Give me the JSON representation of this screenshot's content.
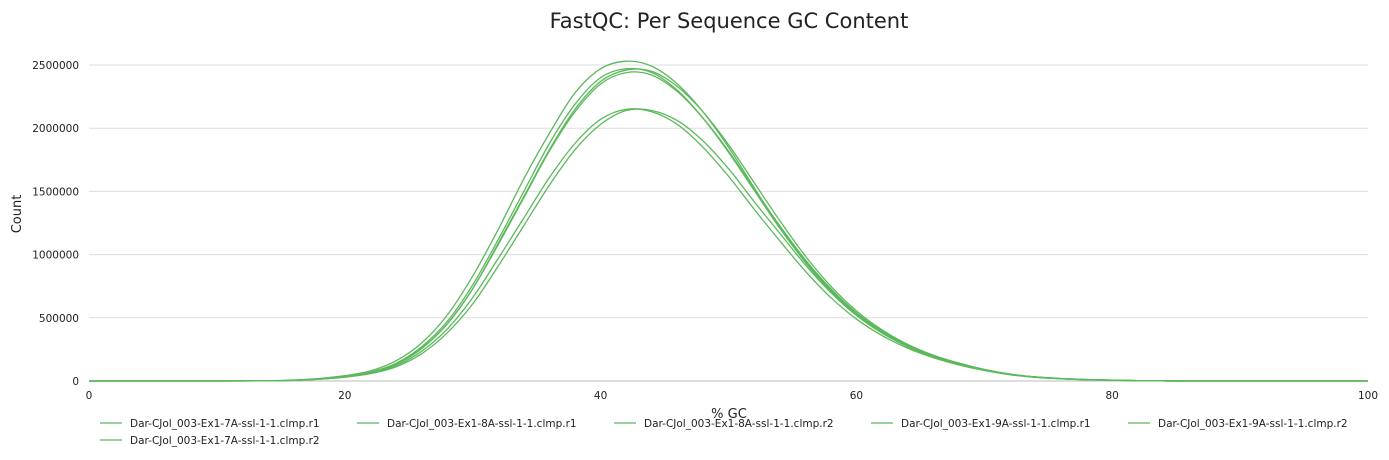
{
  "chart_data": {
    "type": "line",
    "title": "FastQC: Per Sequence GC Content",
    "xlabel": "% GC",
    "ylabel": "Count",
    "xlim": [
      0,
      100
    ],
    "ylim": [
      0,
      2500000
    ],
    "xticks": [
      0,
      20,
      40,
      60,
      80,
      100
    ],
    "yticks": [
      0,
      500000,
      1000000,
      1500000,
      2000000,
      2500000
    ],
    "grid": "horizontal",
    "legend_position": "bottom",
    "line_color": "#5cb85c",
    "x": [
      0,
      10,
      14,
      16,
      18,
      20,
      22,
      24,
      26,
      28,
      30,
      32,
      34,
      36,
      38,
      40,
      42,
      44,
      46,
      48,
      50,
      52,
      54,
      56,
      58,
      60,
      62,
      64,
      66,
      68,
      70,
      72,
      74,
      76,
      78,
      80,
      82,
      84,
      86,
      100
    ],
    "series": [
      {
        "name": "Dar-CJol_003-Ex1-7A-ssl-1-1.clmp.r1",
        "values": [
          0,
          0,
          2000,
          8000,
          20000,
          42000,
          80000,
          160000,
          300000,
          520000,
          830000,
          1200000,
          1600000,
          1960000,
          2280000,
          2470000,
          2530000,
          2490000,
          2350000,
          2130000,
          1850000,
          1530000,
          1220000,
          950000,
          720000,
          530000,
          390000,
          280000,
          200000,
          140000,
          90000,
          55000,
          32000,
          20000,
          12000,
          7000,
          3000,
          1000,
          0,
          0
        ]
      },
      {
        "name": "Dar-CJol_003-Ex1-8A-ssl-1-1.clmp.r1",
        "values": [
          0,
          0,
          1500,
          6000,
          17000,
          36000,
          70000,
          140000,
          270000,
          470000,
          760000,
          1120000,
          1500000,
          1880000,
          2190000,
          2400000,
          2470000,
          2440000,
          2300000,
          2080000,
          1810000,
          1510000,
          1210000,
          940000,
          710000,
          520000,
          380000,
          275000,
          195000,
          135000,
          88000,
          53000,
          31000,
          19000,
          11000,
          6500,
          2800,
          900,
          0,
          0
        ]
      },
      {
        "name": "Dar-CJol_003-Ex1-8A-ssl-1-1.clmp.r2",
        "values": [
          0,
          0,
          1500,
          6000,
          16000,
          34000,
          66000,
          132000,
          255000,
          450000,
          730000,
          1080000,
          1450000,
          1820000,
          2130000,
          2350000,
          2440000,
          2420000,
          2290000,
          2080000,
          1820000,
          1520000,
          1230000,
          960000,
          730000,
          540000,
          395000,
          285000,
          200000,
          140000,
          90000,
          54000,
          32000,
          19000,
          11000,
          6500,
          2800,
          900,
          0,
          0
        ]
      },
      {
        "name": "Dar-CJol_003-Ex1-9A-ssl-1-1.clmp.r1",
        "values": [
          0,
          0,
          1500,
          5500,
          15000,
          32000,
          62000,
          122000,
          235000,
          410000,
          660000,
          970000,
          1290000,
          1610000,
          1880000,
          2070000,
          2150000,
          2130000,
          2030000,
          1850000,
          1620000,
          1360000,
          1110000,
          870000,
          660000,
          490000,
          360000,
          260000,
          185000,
          128000,
          83000,
          50000,
          29000,
          17500,
          10000,
          6000,
          2500,
          800,
          0,
          0
        ]
      },
      {
        "name": "Dar-CJol_003-Ex1-9A-ssl-1-1.clmp.r2",
        "values": [
          0,
          0,
          1300,
          5000,
          14000,
          30000,
          58000,
          112000,
          215000,
          380000,
          610000,
          910000,
          1230000,
          1550000,
          1830000,
          2030000,
          2140000,
          2140000,
          2060000,
          1900000,
          1680000,
          1420000,
          1170000,
          920000,
          700000,
          520000,
          380000,
          272000,
          192000,
          132000,
          86000,
          52000,
          30000,
          18000,
          10500,
          6200,
          2600,
          850,
          0,
          0
        ]
      },
      {
        "name": "Dar-CJol_003-Ex1-7A-ssl-1-1.clmp.r2",
        "values": [
          0,
          0,
          1500,
          6000,
          17000,
          35000,
          68000,
          134000,
          258000,
          450000,
          730000,
          1090000,
          1460000,
          1830000,
          2150000,
          2370000,
          2460000,
          2450000,
          2330000,
          2130000,
          1870000,
          1570000,
          1270000,
          990000,
          750000,
          555000,
          405000,
          290000,
          205000,
          142000,
          92000,
          55000,
          32000,
          19500,
          11500,
          6800,
          2900,
          950,
          0,
          0
        ]
      }
    ]
  }
}
